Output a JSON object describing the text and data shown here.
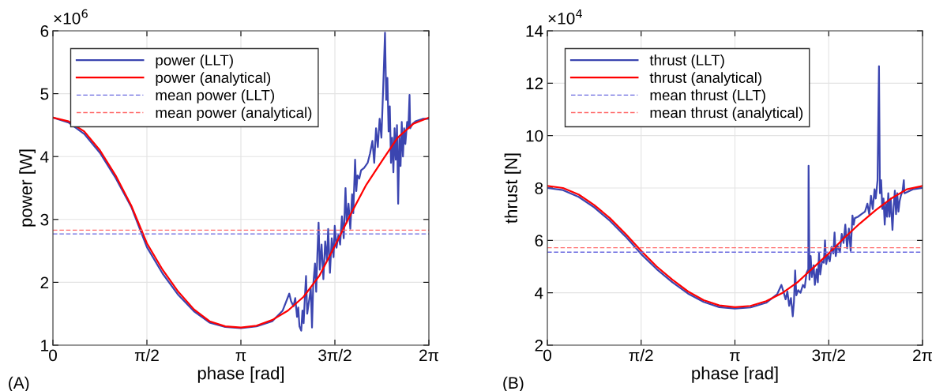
{
  "chart_data": [
    {
      "type": "line",
      "xlabel": "phase [rad]",
      "ylabel": "power [W]",
      "annotations": [
        "×10$^{6}$",
        "(A)"
      ],
      "xlim": [
        0,
        6.2832
      ],
      "xticks": [
        0,
        {
          "value": 1.5708,
          "label": "π/2"
        },
        {
          "value": 3.1416,
          "label": "π"
        },
        {
          "value": 4.7124,
          "label": "3π/2"
        },
        {
          "value": 6.2832,
          "label": "2π"
        }
      ],
      "ylim": [
        1,
        6
      ],
      "yticks": [
        1,
        2,
        3,
        4,
        5,
        6
      ],
      "grid": true,
      "legend": "top left",
      "series": [
        {
          "name": "power (LLT)",
          "color": "#3b45b0",
          "x": [
            0,
            0.2618,
            0.5236,
            0.7854,
            1.0472,
            1.309,
            1.5708,
            1.8326,
            2.0944,
            2.3562,
            2.618,
            2.8798,
            3.1416,
            3.4034,
            3.6652,
            3.84,
            3.95,
            3.98,
            4.02,
            4.05,
            4.08,
            4.1,
            4.12,
            4.15,
            4.17,
            4.19,
            4.21,
            4.23,
            4.25,
            4.28,
            4.31,
            4.33,
            4.35,
            4.38,
            4.4,
            4.42,
            4.44,
            4.46,
            4.49,
            4.52,
            4.55,
            4.58,
            4.6,
            4.63,
            4.66,
            4.69,
            4.71,
            4.74,
            4.77,
            4.8,
            4.83,
            4.86,
            4.89,
            4.91,
            4.94,
            4.97,
            5.0,
            5.02,
            5.05,
            5.07,
            5.09,
            5.12,
            5.15,
            5.2,
            5.26,
            5.3,
            5.34,
            5.37,
            5.4,
            5.43,
            5.46,
            5.49,
            5.52,
            5.55,
            5.57,
            5.59,
            5.61,
            5.63,
            5.65,
            5.67,
            5.69,
            5.71,
            5.73,
            5.75,
            5.77,
            5.79,
            5.81,
            5.83,
            5.85,
            5.87,
            5.89,
            5.92,
            5.94,
            5.96,
            5.97,
            6.01,
            6.06,
            6.12,
            6.18,
            6.2832
          ],
          "values": [
            4.62,
            4.54,
            4.36,
            4.06,
            3.66,
            3.2,
            2.56,
            2.14,
            1.8,
            1.54,
            1.36,
            1.29,
            1.27,
            1.3,
            1.38,
            1.55,
            1.82,
            1.7,
            1.62,
            1.75,
            1.45,
            1.6,
            1.3,
            1.23,
            1.55,
            1.35,
            1.75,
            2.1,
            1.5,
            1.7,
            1.9,
            1.28,
            1.95,
            2.3,
            1.85,
            2.45,
            2.95,
            2.2,
            2.6,
            2.05,
            2.65,
            2.35,
            2.85,
            2.15,
            2.7,
            2.4,
            2.9,
            2.55,
            2.75,
            2.6,
            3.05,
            2.7,
            3.5,
            2.95,
            3.25,
            2.85,
            3.4,
            3.1,
            3.95,
            3.45,
            3.7,
            3.65,
            3.78,
            3.82,
            3.9,
            4.05,
            4.25,
            3.9,
            4.45,
            4.15,
            4.6,
            4.3,
            5.1,
            5.97,
            4.9,
            5.25,
            4.4,
            4.8,
            3.9,
            4.3,
            3.75,
            4.45,
            3.95,
            4.5,
            3.25,
            4.3,
            3.85,
            4.55,
            4.0,
            4.45,
            4.2,
            4.55,
            4.45,
            4.98,
            4.45,
            4.52,
            4.56,
            4.58,
            4.6,
            4.6
          ]
        },
        {
          "name": "power (analytical)",
          "color": "#ff0000",
          "x": [
            0,
            0.2618,
            0.5236,
            0.7854,
            1.0472,
            1.309,
            1.5708,
            1.8326,
            2.0944,
            2.3562,
            2.618,
            2.8798,
            3.1416,
            3.4034,
            3.6652,
            3.927,
            4.1888,
            4.4506,
            4.7124,
            4.9742,
            5.236,
            5.4978,
            5.7596,
            6.0214,
            6.2832
          ],
          "values": [
            4.62,
            4.56,
            4.4,
            4.1,
            3.7,
            3.22,
            2.62,
            2.2,
            1.85,
            1.57,
            1.38,
            1.3,
            1.28,
            1.31,
            1.4,
            1.55,
            1.77,
            2.1,
            2.58,
            3.08,
            3.55,
            3.93,
            4.3,
            4.52,
            4.62
          ]
        },
        {
          "name": "mean power (LLT)",
          "color": "#6a6ae0",
          "line_style": "dashed",
          "x": [
            0,
            6.2832
          ],
          "values": [
            2.77,
            2.77
          ]
        },
        {
          "name": "mean power (analytical)",
          "color": "#ff6b6b",
          "line_style": "dashed",
          "x": [
            0,
            6.2832
          ],
          "values": [
            2.83,
            2.83
          ]
        }
      ]
    },
    {
      "type": "line",
      "xlabel": "phase [rad]",
      "ylabel": "thrust [N]",
      "annotations": [
        "×10$^{4}$",
        "(B)"
      ],
      "xlim": [
        0,
        6.2832
      ],
      "xticks": [
        0,
        {
          "value": 1.5708,
          "label": "π/2"
        },
        {
          "value": 3.1416,
          "label": "π"
        },
        {
          "value": 4.7124,
          "label": "3π/2"
        },
        {
          "value": 6.2832,
          "label": "2π"
        }
      ],
      "ylim": [
        2,
        14
      ],
      "yticks": [
        2,
        4,
        6,
        8,
        10,
        12,
        14
      ],
      "grid": true,
      "legend": "top left",
      "series": [
        {
          "name": "thrust (LLT)",
          "color": "#3b45b0",
          "x": [
            0,
            0.2618,
            0.5236,
            0.7854,
            1.0472,
            1.309,
            1.5708,
            1.8326,
            2.0944,
            2.3562,
            2.618,
            2.8798,
            3.1416,
            3.4034,
            3.6652,
            3.85,
            3.92,
            3.96,
            3.99,
            4.02,
            4.05,
            4.08,
            4.11,
            4.13,
            4.15,
            4.17,
            4.2,
            4.24,
            4.28,
            4.31,
            4.34,
            4.37,
            4.375,
            4.39,
            4.41,
            4.43,
            4.46,
            4.48,
            4.51,
            4.53,
            4.55,
            4.57,
            4.6,
            4.63,
            4.65,
            4.67,
            4.7,
            4.73,
            4.76,
            4.79,
            4.81,
            4.83,
            4.86,
            4.9,
            4.93,
            4.96,
            4.99,
            5.02,
            5.05,
            5.08,
            5.11,
            5.13,
            5.15,
            5.2,
            5.26,
            5.32,
            5.36,
            5.39,
            5.42,
            5.45,
            5.48,
            5.5,
            5.53,
            5.554,
            5.57,
            5.59,
            5.61,
            5.63,
            5.65,
            5.67,
            5.69,
            5.71,
            5.73,
            5.75,
            5.78,
            5.8,
            5.82,
            5.84,
            5.86,
            5.88,
            5.9,
            5.92,
            5.95,
            5.97,
            5.98,
            6.03,
            6.12,
            6.2832
          ],
          "values": [
            8.0,
            7.92,
            7.66,
            7.26,
            6.75,
            6.15,
            5.48,
            4.9,
            4.4,
            3.97,
            3.65,
            3.45,
            3.4,
            3.44,
            3.62,
            3.95,
            4.3,
            4.0,
            3.75,
            4.05,
            3.5,
            3.8,
            3.1,
            3.65,
            4.85,
            3.9,
            4.1,
            4.0,
            4.3,
            4.2,
            4.75,
            4.9,
            8.85,
            4.5,
            5.4,
            4.6,
            5.05,
            4.3,
            4.9,
            4.4,
            5.5,
            4.7,
            5.2,
            5.15,
            6.0,
            5.1,
            5.45,
            5.2,
            5.75,
            5.5,
            6.3,
            5.4,
            5.8,
            5.55,
            6.25,
            5.9,
            6.6,
            5.7,
            6.45,
            5.6,
            6.95,
            6.6,
            6.85,
            6.9,
            7.0,
            7.1,
            7.4,
            7.0,
            7.7,
            7.2,
            7.95,
            7.6,
            8.3,
            12.65,
            7.8,
            8.3,
            7.2,
            7.6,
            6.6,
            7.4,
            6.9,
            7.8,
            6.9,
            7.6,
            6.4,
            7.3,
            7.9,
            7.0,
            7.8,
            7.1,
            7.5,
            7.7,
            7.9,
            8.3,
            7.8,
            7.85,
            7.95,
            8.0
          ]
        },
        {
          "name": "thrust (analytical)",
          "color": "#ff0000",
          "x": [
            0,
            0.2618,
            0.5236,
            0.7854,
            1.0472,
            1.309,
            1.5708,
            1.8326,
            2.0944,
            2.3562,
            2.618,
            2.8798,
            3.1416,
            3.4034,
            3.6652,
            3.927,
            4.1888,
            4.4506,
            4.7124,
            4.9742,
            5.236,
            5.4978,
            5.7596,
            6.0214,
            6.2832
          ],
          "values": [
            8.08,
            8.0,
            7.75,
            7.35,
            6.85,
            6.25,
            5.6,
            5.0,
            4.5,
            4.05,
            3.72,
            3.52,
            3.45,
            3.5,
            3.68,
            3.98,
            4.4,
            4.95,
            5.5,
            6.1,
            6.65,
            7.15,
            7.6,
            7.95,
            8.08
          ]
        },
        {
          "name": "mean thrust (LLT)",
          "color": "#6a6ae0",
          "line_style": "dashed",
          "x": [
            0,
            6.2832
          ],
          "values": [
            5.55,
            5.55
          ]
        },
        {
          "name": "mean thrust (analytical)",
          "color": "#ff6b6b",
          "line_style": "dashed",
          "x": [
            0,
            6.2832
          ],
          "values": [
            5.72,
            5.72
          ]
        }
      ]
    }
  ]
}
